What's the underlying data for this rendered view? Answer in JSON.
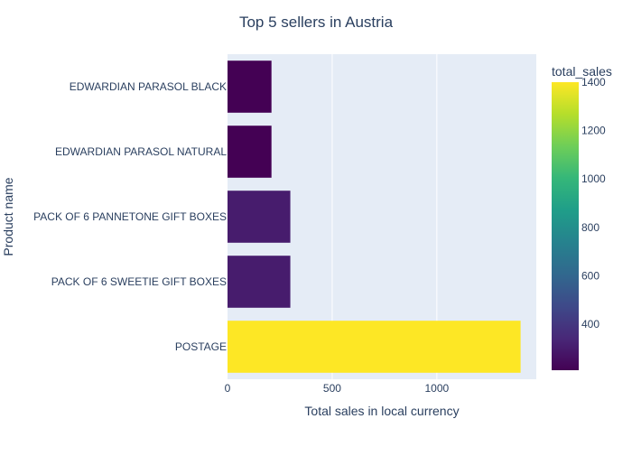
{
  "chart_data": {
    "type": "bar",
    "orientation": "horizontal",
    "title": "Top 5 sellers in Austria",
    "xlabel": "Total sales in local currency",
    "ylabel": "Product name",
    "categories": [
      "EDWARDIAN PARASOL BLACK",
      "EDWARDIAN PARASOL NATURAL",
      "PACK OF 6 PANNETONE GIFT BOXES",
      "PACK OF 6 SWEETIE GIFT BOXES",
      "POSTAGE"
    ],
    "values": [
      210,
      210,
      300,
      300,
      1400
    ],
    "xlim": [
      0,
      1475
    ],
    "xticks": [
      0,
      500,
      1000
    ],
    "xtick_labels": [
      "0",
      "500",
      "1000"
    ],
    "grid": true,
    "colorscale": {
      "name": "Viridis",
      "title": "total_sales",
      "range": [
        210,
        1400
      ],
      "ticks": [
        400,
        600,
        800,
        1000,
        1200,
        1400
      ],
      "tick_labels": [
        "400",
        "600",
        "800",
        "1000",
        "1200",
        "1400"
      ]
    },
    "colors": {
      "plot_bg": "#e5ecf6",
      "grid": "#ffffff",
      "text": "#2a3f5f"
    }
  }
}
